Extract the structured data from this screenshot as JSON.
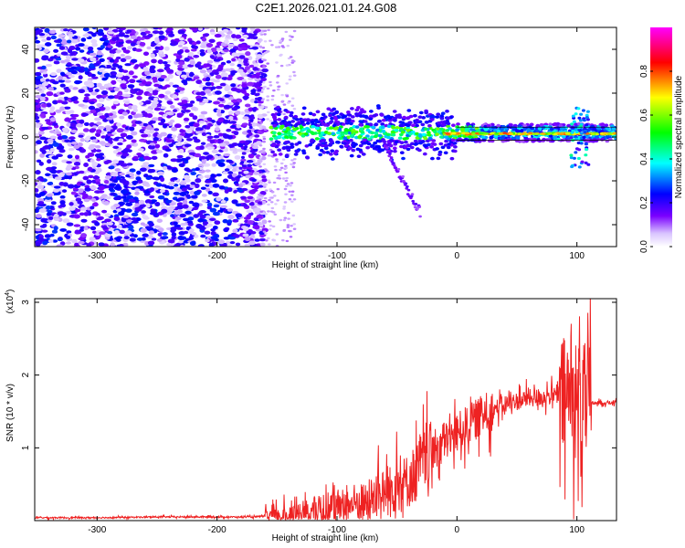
{
  "title": "C2E1.2026.021.01.24.G08",
  "chart_data": [
    {
      "type": "heatmap",
      "name": "spectrogram",
      "xlabel": "Height of straight line (km)",
      "ylabel": "Frequency (Hz)",
      "xlim": [
        -352,
        133
      ],
      "ylim": [
        -50,
        50
      ],
      "xticks": [
        -300,
        -200,
        -100,
        0,
        100
      ],
      "yticks": [
        -40,
        -20,
        0,
        20,
        40
      ],
      "xtick_labels": [
        "-300",
        "-200",
        "-100",
        "0",
        "100"
      ],
      "ytick_labels": [
        "-40",
        "-20",
        "0",
        "20",
        "40"
      ],
      "colorbar": {
        "label": "Normalized spectral amplitude",
        "range": [
          0,
          1
        ],
        "ticks": [
          0.0,
          0.2,
          0.4,
          0.6,
          0.8
        ],
        "tick_labels": [
          "0.0",
          "0.2",
          "0.4",
          "0.6",
          "0.8"
        ],
        "colors": [
          "#ffffff",
          "#7a00ff",
          "#0000ff",
          "#00ffff",
          "#00ff00",
          "#ffff00",
          "#ff0000",
          "#ff00ff"
        ]
      },
      "signal_track": {
        "noise_end_km": -160,
        "band_start_km": -155,
        "band_end_km": 133,
        "center_freq_hz": 2,
        "dense_band_width_hz": 8,
        "strong_line_freq_hz": 1.5,
        "strong_line_start_km": -10,
        "branch_to_km": -30,
        "branch_to_hz": -35
      }
    },
    {
      "type": "line",
      "name": "snr",
      "xlabel": "Height of straight line (km)",
      "ylabel": "SNR (10 * v/v)",
      "y_scale_label": "(x10",
      "y_scale_exp": "4",
      "y_scale_close": ")",
      "xlim": [
        -352,
        133
      ],
      "ylim": [
        0,
        3.05
      ],
      "xticks": [
        -300,
        -200,
        -100,
        0,
        100
      ],
      "yticks": [
        1,
        2,
        3
      ],
      "xtick_labels": [
        "-300",
        "-200",
        "-100",
        "0",
        "100"
      ],
      "ytick_labels": [
        "1",
        "2",
        "3"
      ],
      "color": "#ee2222",
      "series": [
        {
          "name": "SNR",
          "x": [
            -352,
            -300,
            -250,
            -200,
            -170,
            -160,
            -140,
            -120,
            -100,
            -80,
            -60,
            -40,
            -30,
            -20,
            -10,
            0,
            10,
            20,
            30,
            40,
            50,
            60,
            70,
            80,
            90,
            95,
            100,
            105,
            110,
            115,
            133
          ],
          "y": [
            0.04,
            0.04,
            0.05,
            0.05,
            0.05,
            0.06,
            0.09,
            0.13,
            0.2,
            0.26,
            0.38,
            0.55,
            0.78,
            0.95,
            1.1,
            1.2,
            1.32,
            1.44,
            1.52,
            1.6,
            1.64,
            1.68,
            1.7,
            1.72,
            1.7,
            1.68,
            1.65,
            1.6,
            1.6,
            1.62,
            1.62
          ]
        }
      ]
    }
  ]
}
